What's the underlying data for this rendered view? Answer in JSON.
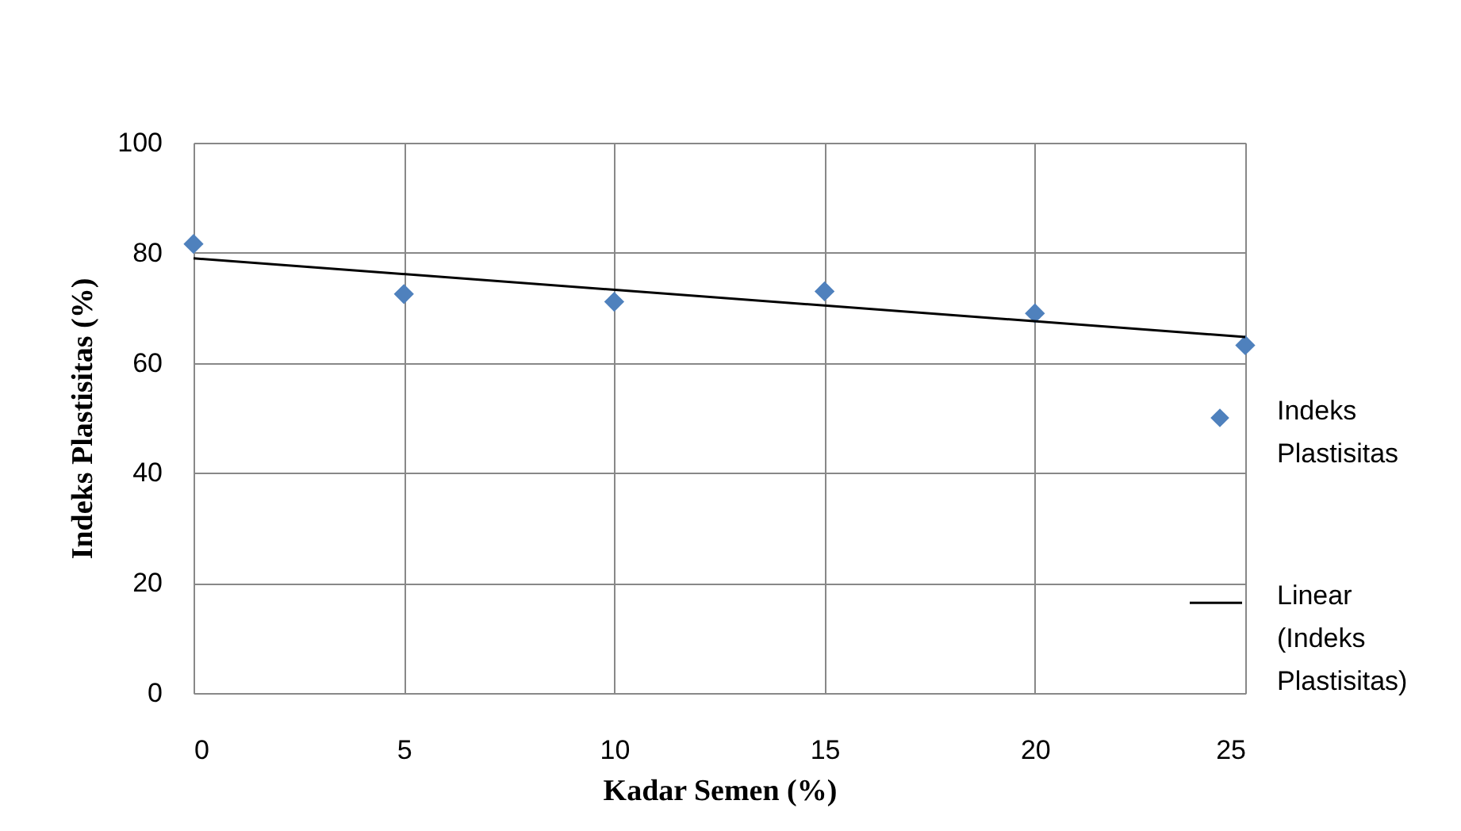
{
  "chart_data": {
    "type": "scatter",
    "xlabel": "Kadar Semen (%)",
    "ylabel": "Indeks Plastisitas (%)",
    "xlim": [
      0,
      25
    ],
    "xticks": [
      0,
      5,
      10,
      15,
      20,
      25
    ],
    "ylim": [
      0,
      100
    ],
    "yticks": [
      0,
      20,
      40,
      60,
      80,
      100
    ],
    "grid": true,
    "legend": "right",
    "series": [
      {
        "name": "Indeks Plastisitas",
        "marker": "diamond",
        "color": "#4f81bd",
        "x": [
          0,
          5,
          10,
          15,
          20,
          25
        ],
        "values": [
          81.6,
          72.5,
          71.1,
          73.0,
          69.0,
          63.2
        ]
      },
      {
        "name": "Linear (Indeks Plastisitas)",
        "type": "line",
        "color": "#000000",
        "x": [
          0,
          25
        ],
        "values": [
          79.0,
          64.7
        ],
        "line_style": "solid"
      }
    ]
  }
}
